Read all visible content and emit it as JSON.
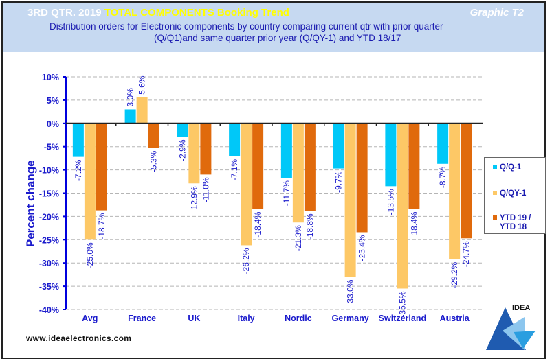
{
  "header": {
    "title_part1": "3RD QTR. 2019 ",
    "title_part2": "TOTAL COMPONENTS  Booking Trend",
    "graphic_id": "Graphic T2",
    "subtitle_line1": "Distribution  orders for Electronic components by country comparing  current qtr with prior quarter",
    "subtitle_line2": "(Q/Q1)and  same quarter prior year (Q/QY-1)  and YTD  18/17"
  },
  "footer": {
    "website": "www.ideaelectronics.com",
    "logo_text": "IDEA"
  },
  "colors": {
    "q_q1": "#00c8f8",
    "q_qy1": "#fdc866",
    "ytd": "#e06a0c",
    "label_text": "#1a1acc",
    "header_bg": "#c6d9f1"
  },
  "legend": [
    {
      "label_line1": "Q/Q-1",
      "label_line2": "",
      "color": "#00c8f8"
    },
    {
      "label_line1": "Q/QY-1",
      "label_line2": "",
      "color": "#fdc866"
    },
    {
      "label_line1": "YTD 19 /",
      "label_line2": "YTD 18",
      "color": "#e06a0c"
    }
  ],
  "chart_data": {
    "type": "bar",
    "title": "3RD QTR. 2019 TOTAL COMPONENTS Booking Trend",
    "xlabel": "",
    "ylabel": "Percent change",
    "ylim": [
      -40,
      10
    ],
    "yticks": [
      10,
      5,
      0,
      -5,
      -10,
      -15,
      -20,
      -25,
      -30,
      -35,
      -40
    ],
    "ytick_labels": [
      "10%",
      "5%",
      "0%",
      "-5%",
      "-10%",
      "-15%",
      "-20%",
      "-25%",
      "-30%",
      "-35%",
      "-40%"
    ],
    "grid": true,
    "legend_position": "right",
    "categories": [
      "Avg",
      "France",
      "UK",
      "Italy",
      "Nordic",
      "Germany",
      "Switzerland",
      "Austria"
    ],
    "series": [
      {
        "name": "Q/Q-1",
        "values": [
          -7.2,
          3.0,
          -2.9,
          -7.1,
          -11.7,
          -9.7,
          -13.5,
          -8.7
        ]
      },
      {
        "name": "Q/QY-1",
        "values": [
          -25.0,
          5.6,
          -12.9,
          -26.2,
          -21.3,
          -33.0,
          -35.5,
          -29.2
        ]
      },
      {
        "name": "YTD 19 / YTD 18",
        "values": [
          -18.7,
          -5.3,
          -11.0,
          -18.4,
          -18.8,
          -23.4,
          -18.4,
          -24.7
        ]
      }
    ],
    "data_labels": [
      [
        "-7.2%",
        "3.0%",
        "-2.9%",
        "-7.1%",
        "-11.7%",
        "-9.7%",
        "-13.5%",
        "-8.7%"
      ],
      [
        "-25.0%",
        "5.6%",
        "-12.9%",
        "-26.2%",
        "-21.3%",
        "-33.0%",
        "-35.5%",
        "-29.2%"
      ],
      [
        "-18.7%",
        "-5.3%",
        "-11.0%",
        "-18.4%",
        "-18.8%",
        "-23.4%",
        "-18.4%",
        "-24.7%"
      ]
    ]
  }
}
